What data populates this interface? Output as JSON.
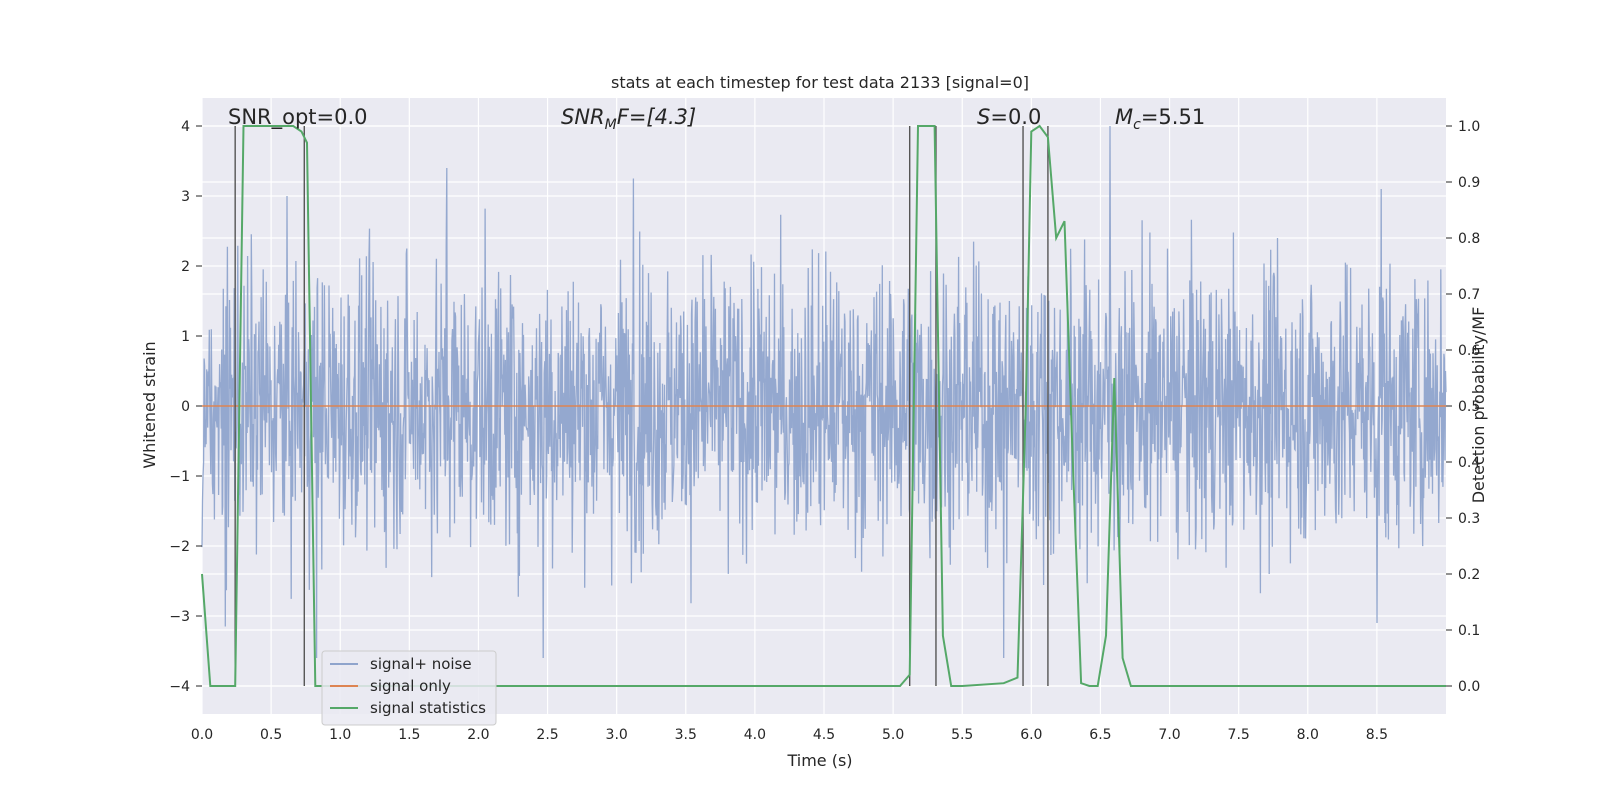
{
  "chart_data": {
    "type": "line",
    "title": "stats at each timestep for test data 2133 [signal=0]",
    "xlabel": "Time (s)",
    "ylabel": "Whitened strain",
    "y2label": "Detection probability/MF",
    "xlim": [
      0,
      9
    ],
    "ylim": [
      -4.4,
      4.4
    ],
    "y2lim": [
      -0.05,
      1.05
    ],
    "x_ticks": [
      "0.0",
      "0.5",
      "1.0",
      "1.5",
      "2.0",
      "2.5",
      "3.0",
      "3.5",
      "4.0",
      "4.5",
      "5.0",
      "5.5",
      "6.0",
      "6.5",
      "7.0",
      "7.5",
      "8.0",
      "8.5"
    ],
    "y_ticks": [
      "4",
      "3",
      "2",
      "1",
      "0",
      "−1",
      "−2",
      "−3",
      "−4"
    ],
    "y2_ticks": [
      "1.0",
      "0.9",
      "0.8",
      "0.7",
      "0.6",
      "0.5",
      "0.4",
      "0.3",
      "0.2",
      "0.1",
      "0.0"
    ],
    "grid": true,
    "legend_position": "lower-left",
    "annotations": {
      "snr_opt": "SNR_opt=0.0",
      "snr_mf_base": "SNR",
      "snr_mf_sub": "M",
      "snr_mf_rest": "F=[4.3]",
      "s_base": "S",
      "s_rest": "=0.0",
      "mc_base": "M",
      "mc_sub": "c",
      "mc_rest": "=5.51"
    },
    "series": [
      {
        "name": "signal+ noise",
        "color": "#8fa4cc",
        "description_values": "whitened noise, roughly ±1.6 with spikes to ±3.4",
        "noise_amplitude": 1.6,
        "peak_spikes": [
          {
            "x": 1.77,
            "y": 3.4
          },
          {
            "x": 3.12,
            "y": 3.25
          },
          {
            "x": 6.57,
            "y": 4.0
          },
          {
            "x": 2.47,
            "y": -3.6
          },
          {
            "x": 0.83,
            "y": -3.6
          },
          {
            "x": 5.8,
            "y": -3.6
          },
          {
            "x": 8.53,
            "y": 3.1
          },
          {
            "x": 8.5,
            "y": -3.1
          },
          {
            "x": 0.17,
            "y": -3.15
          }
        ]
      },
      {
        "name": "signal only",
        "color": "#dd8452",
        "x": [
          0,
          9
        ],
        "y": [
          0,
          0
        ]
      },
      {
        "name": "signal statistics",
        "color": "#55a868",
        "axis": "right",
        "x": [
          0.0,
          0.06,
          0.12,
          0.2,
          0.24,
          0.3,
          0.36,
          0.42,
          0.48,
          0.54,
          0.6,
          0.66,
          0.72,
          0.76,
          0.82,
          0.9,
          1.0,
          5.05,
          5.12,
          5.18,
          5.24,
          5.3,
          5.36,
          5.42,
          5.5,
          5.8,
          5.9,
          5.96,
          6.0,
          6.06,
          6.12,
          6.18,
          6.24,
          6.3,
          6.36,
          6.42,
          6.48,
          6.54,
          6.6,
          6.66,
          6.72,
          6.8,
          7.0,
          9.0
        ],
        "y": [
          0.2,
          0.0,
          0.0,
          0.0,
          0.0,
          1.0,
          1.0,
          1.0,
          1.0,
          1.0,
          1.0,
          1.0,
          0.99,
          0.97,
          0.0,
          0.0,
          0.0,
          0.0,
          0.02,
          1.0,
          1.0,
          1.0,
          0.09,
          0.0,
          0.0,
          0.005,
          0.015,
          0.5,
          0.99,
          1.0,
          0.98,
          0.8,
          0.83,
          0.4,
          0.005,
          0.0,
          0.0,
          0.09,
          0.55,
          0.05,
          0.0,
          0.0,
          0.0,
          0.0
        ]
      }
    ],
    "vertical_lines_x": [
      0.24,
      0.74,
      5.12,
      5.31,
      5.94,
      6.12
    ]
  }
}
